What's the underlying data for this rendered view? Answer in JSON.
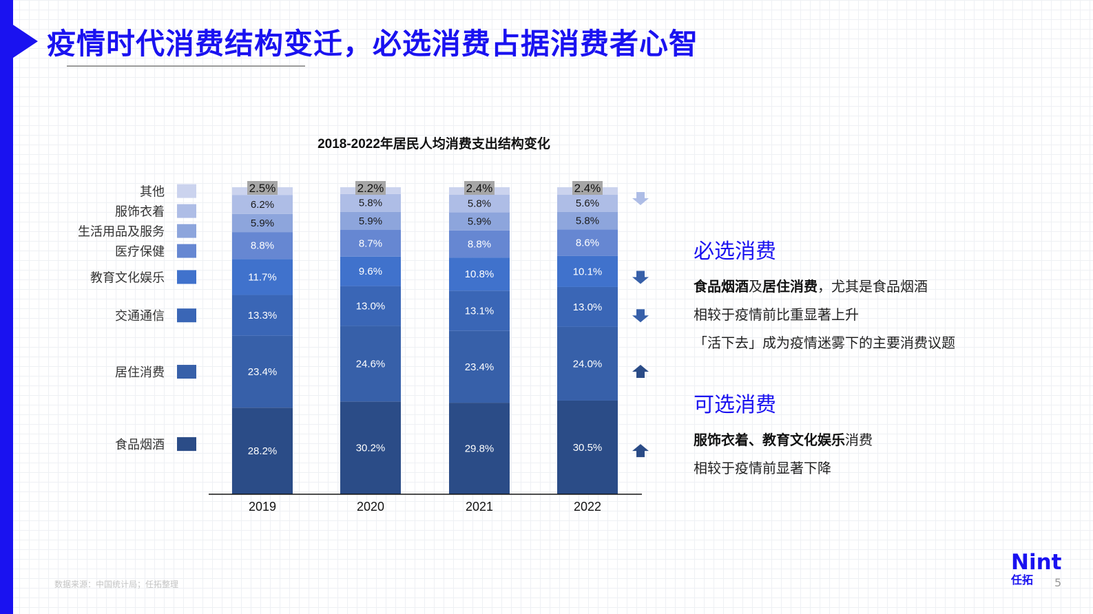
{
  "page": {
    "title": "疫情时代消费结构变迁，必选消费占据消费者心智",
    "source_note": "数据来源：中国统计局；任拓整理",
    "page_number": "5"
  },
  "brand": {
    "logo_en": "Nint",
    "logo_cn": "任拓",
    "accent_color": "#1a12f0"
  },
  "chart_data": {
    "type": "bar",
    "stacked": true,
    "title": "2018-2022年居民人均消费支出结构变化",
    "categories": [
      "2019",
      "2020",
      "2021",
      "2022"
    ],
    "ylim": [
      0,
      100
    ],
    "series": [
      {
        "name": "食品烟酒",
        "color": "#2b4c87",
        "values": [
          28.2,
          30.2,
          29.8,
          30.5
        ],
        "labels": [
          "28.2%",
          "30.2%",
          "29.8%",
          "30.5%"
        ]
      },
      {
        "name": "居住消费",
        "color": "#3760a9",
        "values": [
          23.4,
          24.6,
          23.4,
          24.0
        ],
        "labels": [
          "23.4%",
          "24.6%",
          "23.4%",
          "24.0%"
        ]
      },
      {
        "name": "交通通信",
        "color": "#3a66b6",
        "values": [
          13.3,
          13.0,
          13.1,
          13.0
        ],
        "labels": [
          "13.3%",
          "13.0%",
          "13.1%",
          "13.0%"
        ]
      },
      {
        "name": "教育文化娱乐",
        "color": "#4072cc",
        "values": [
          11.7,
          9.6,
          10.8,
          10.1
        ],
        "labels": [
          "11.7%",
          "9.6%",
          "10.8%",
          "10.1%"
        ]
      },
      {
        "name": "医疗保健",
        "color": "#6687d2",
        "values": [
          8.8,
          8.7,
          8.8,
          8.6
        ],
        "labels": [
          "8.8%",
          "8.7%",
          "8.8%",
          "8.6%"
        ]
      },
      {
        "name": "生活用品及服务",
        "color": "#8da5dc",
        "values": [
          5.9,
          5.9,
          5.9,
          5.8
        ],
        "labels": [
          "5.9%",
          "5.9%",
          "5.9%",
          "5.8%"
        ]
      },
      {
        "name": "服饰衣着",
        "color": "#aebde6",
        "values": [
          6.2,
          5.8,
          5.8,
          5.6
        ],
        "labels": [
          "6.2%",
          "5.8%",
          "5.8%",
          "5.6%"
        ]
      },
      {
        "name": "其他",
        "color": "#cbd3ee",
        "values": [
          2.5,
          2.2,
          2.4,
          2.4
        ],
        "labels": [
          "2.5%",
          "2.2%",
          "2.4%",
          "2.4%"
        ]
      }
    ],
    "trend_arrows": [
      {
        "series": "服饰衣着",
        "direction": "down",
        "color": "#aebde6"
      },
      {
        "series": "教育文化娱乐",
        "direction": "down",
        "color": "#3760a9"
      },
      {
        "series": "交通通信",
        "direction": "down",
        "color": "#3760a9"
      },
      {
        "series": "居住消费",
        "direction": "up",
        "color": "#2b4c87"
      },
      {
        "series": "食品烟酒",
        "direction": "up",
        "color": "#2b4c87"
      }
    ]
  },
  "sections": {
    "essential": {
      "heading": "必选消费",
      "line1_bold1": "食品烟酒",
      "line1_mid": "及",
      "line1_bold2": "居住消费",
      "line1_tail": "，尤其是食品烟酒",
      "line2": "相较于疫情前比重显著上升",
      "line3": "「活下去」成为疫情迷雾下的主要消费议题"
    },
    "optional": {
      "heading": "可选消费",
      "line1_bold": "服饰衣着、教育文化娱乐",
      "line1_tail": "消费",
      "line2": "相较于疫情前显著下降"
    }
  }
}
